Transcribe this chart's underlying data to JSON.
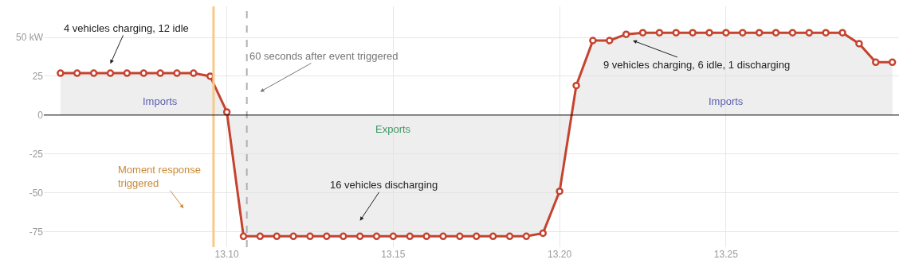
{
  "chart_data": {
    "type": "area",
    "x": [
      13.05,
      13.055,
      13.06,
      13.065,
      13.07,
      13.075,
      13.08,
      13.085,
      13.09,
      13.095,
      13.1,
      13.105,
      13.11,
      13.115,
      13.12,
      13.125,
      13.13,
      13.135,
      13.14,
      13.145,
      13.15,
      13.155,
      13.16,
      13.165,
      13.17,
      13.175,
      13.18,
      13.185,
      13.19,
      13.195,
      13.2,
      13.205,
      13.21,
      13.215,
      13.22,
      13.225,
      13.23,
      13.235,
      13.24,
      13.245,
      13.25,
      13.255,
      13.26,
      13.265,
      13.27,
      13.275,
      13.28,
      13.285,
      13.29,
      13.295,
      13.3
    ],
    "series": [
      {
        "color": "#c5432f",
        "values": [
          27,
          27,
          27,
          27,
          27,
          27,
          27,
          27,
          27,
          25,
          2,
          -78,
          -78,
          -78,
          -78,
          -78,
          -78,
          -78,
          -78,
          -78,
          -78,
          -78,
          -78,
          -78,
          -78,
          -78,
          -78,
          -78,
          -78,
          -76,
          -49,
          19,
          48,
          48,
          52,
          53,
          53,
          53,
          53,
          53,
          53,
          53,
          53,
          53,
          53,
          53,
          53,
          53,
          46,
          34,
          34
        ]
      }
    ],
    "xlim": [
      13.045,
      13.302
    ],
    "ylim": [
      -85,
      70
    ],
    "xticks": [
      {
        "value": 13.1,
        "label": "13.10"
      },
      {
        "value": 13.15,
        "label": "13.15"
      },
      {
        "value": 13.2,
        "label": "13.20"
      },
      {
        "value": 13.25,
        "label": "13.25"
      }
    ],
    "yticks": [
      {
        "value": 50,
        "label": "50 kW"
      },
      25,
      0,
      -25,
      -50,
      -75
    ],
    "grid": true,
    "marker": "circle",
    "line_style": "solid",
    "ref_lines": [
      {
        "axis": "x",
        "value": 13.096,
        "label": "Moment response triggered",
        "color": "#f7c98a",
        "line_style": "solid"
      },
      {
        "axis": "x",
        "value": 13.106,
        "label": "60 seconds after event triggered",
        "color": "#b0b0b0",
        "line_style": "dashed"
      },
      {
        "axis": "y",
        "value": 0,
        "color": "#000000",
        "line_style": "solid"
      }
    ],
    "annotations": [
      "4 vehicles charging, 12 idle",
      "Imports",
      "Exports",
      "16 vehicles discharging",
      "9 vehicles charging, 6 idle, 1 discharging",
      "Imports"
    ]
  }
}
